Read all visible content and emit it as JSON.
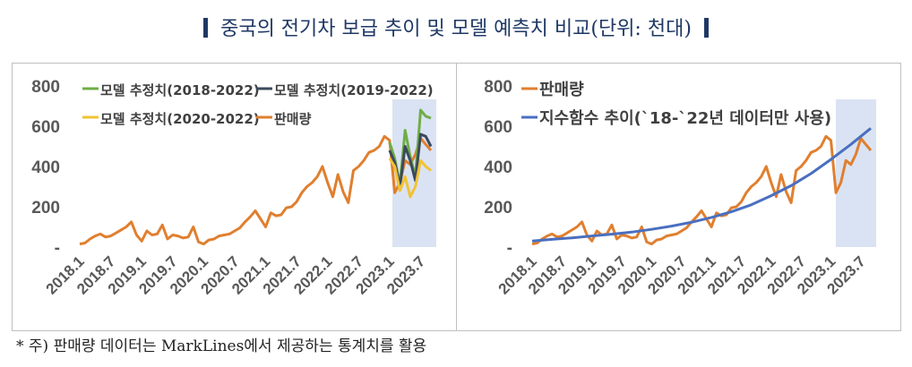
{
  "title": "중국의 전기차 보급 추이 및 모델 예측치 비교(단위: 천대)",
  "note": "* 주) 판매량 데이터는 MarkLines에서 제공하는 통계치를 활용",
  "colors": {
    "sales": "#e07f2f",
    "model_2018": "#70ad47",
    "model_2019": "#3a4a5c",
    "model_2020": "#f2c232",
    "trend": "#4a6fc0",
    "forecast_band": "#dae3f3",
    "axis_text": "#595959",
    "title": "#1f3864"
  },
  "chart_data": [
    {
      "type": "line",
      "panel": "left",
      "y_tick_labels": [
        "-",
        "200",
        "400",
        "600",
        "800"
      ],
      "ylim": [
        0,
        800
      ],
      "x_tick_labels": [
        "2018.1",
        "2018.7",
        "2019.1",
        "2019.7",
        "2020.1",
        "2020.7",
        "2021.1",
        "2021.7",
        "2022.1",
        "2022.7",
        "2023.1",
        "2023.7"
      ],
      "shaded_region": [
        "2023.1",
        "2023.9"
      ],
      "legend_placement": "top",
      "series": [
        {
          "name": "판매량",
          "x": [
            0,
            1,
            2,
            3,
            4,
            5,
            6,
            7,
            8,
            9,
            10,
            11,
            12,
            13,
            14,
            15,
            16,
            17,
            18,
            19,
            20,
            21,
            22,
            23,
            24,
            25,
            26,
            27,
            28,
            29,
            30,
            31,
            32,
            33,
            34,
            35,
            36,
            37,
            38,
            39,
            40,
            41,
            42,
            43,
            44,
            45,
            46,
            47,
            48,
            49,
            50,
            51,
            52,
            53,
            54,
            55,
            56,
            57,
            58,
            59,
            60,
            61,
            62,
            63,
            64,
            65,
            66,
            67,
            68
          ],
          "values": [
            15,
            20,
            40,
            55,
            65,
            50,
            55,
            70,
            85,
            100,
            125,
            60,
            30,
            80,
            60,
            65,
            110,
            40,
            60,
            55,
            45,
            50,
            100,
            25,
            15,
            35,
            40,
            55,
            60,
            65,
            80,
            95,
            125,
            150,
            180,
            140,
            100,
            170,
            155,
            160,
            195,
            200,
            225,
            270,
            300,
            320,
            350,
            400,
            320,
            250,
            360,
            275,
            220,
            380,
            400,
            430,
            470,
            480,
            500,
            550,
            530,
            270,
            320,
            430,
            410,
            460,
            540,
            510,
            480
          ]
        },
        {
          "name": "모델 추정치(2018-2022)",
          "x": [
            60,
            61,
            62,
            63,
            64,
            65,
            66,
            67,
            68
          ],
          "values": [
            520,
            440,
            310,
            580,
            450,
            350,
            680,
            650,
            640
          ]
        },
        {
          "name": "모델 추정치(2019-2022)",
          "x": [
            60,
            61,
            62,
            63,
            64,
            65,
            66,
            67,
            68
          ],
          "values": [
            480,
            420,
            300,
            500,
            430,
            330,
            560,
            550,
            500
          ]
        },
        {
          "name": "모델 추정치(2020-2022)",
          "x": [
            60,
            61,
            62,
            63,
            64,
            65,
            66,
            67,
            68
          ],
          "values": [
            440,
            400,
            280,
            350,
            250,
            300,
            430,
            400,
            380
          ]
        }
      ]
    },
    {
      "type": "line",
      "panel": "right",
      "y_tick_labels": [
        "-",
        "200",
        "400",
        "600",
        "800"
      ],
      "ylim": [
        0,
        800
      ],
      "x_tick_labels": [
        "2018.1",
        "2018.7",
        "2019.1",
        "2019.7",
        "2020.1",
        "2020.7",
        "2021.1",
        "2021.7",
        "2022.1",
        "2022.7",
        "2023.1",
        "2023.7"
      ],
      "shaded_region": [
        "2023.1",
        "2023.9"
      ],
      "legend_placement": "top-left",
      "series": [
        {
          "name": "판매량",
          "x": [
            0,
            1,
            2,
            3,
            4,
            5,
            6,
            7,
            8,
            9,
            10,
            11,
            12,
            13,
            14,
            15,
            16,
            17,
            18,
            19,
            20,
            21,
            22,
            23,
            24,
            25,
            26,
            27,
            28,
            29,
            30,
            31,
            32,
            33,
            34,
            35,
            36,
            37,
            38,
            39,
            40,
            41,
            42,
            43,
            44,
            45,
            46,
            47,
            48,
            49,
            50,
            51,
            52,
            53,
            54,
            55,
            56,
            57,
            58,
            59,
            60,
            61,
            62,
            63,
            64,
            65,
            66,
            67,
            68
          ],
          "values": [
            15,
            20,
            40,
            55,
            65,
            50,
            55,
            70,
            85,
            100,
            125,
            60,
            30,
            80,
            60,
            65,
            110,
            40,
            60,
            55,
            45,
            50,
            100,
            25,
            15,
            35,
            40,
            55,
            60,
            65,
            80,
            95,
            125,
            150,
            180,
            140,
            100,
            170,
            155,
            160,
            195,
            200,
            225,
            270,
            300,
            320,
            350,
            400,
            320,
            250,
            360,
            275,
            220,
            380,
            400,
            430,
            470,
            480,
            500,
            550,
            530,
            270,
            320,
            430,
            410,
            460,
            540,
            510,
            480
          ]
        },
        {
          "name": "지수함수 추이(`18-`22년 데이터만 사용)",
          "x": [
            0,
            4,
            8,
            12,
            16,
            20,
            24,
            28,
            32,
            36,
            40,
            44,
            48,
            52,
            56,
            60,
            64,
            68
          ],
          "values": [
            30,
            38,
            46,
            55,
            64,
            74,
            88,
            104,
            123,
            147,
            175,
            210,
            255,
            305,
            365,
            435,
            510,
            590
          ]
        }
      ]
    }
  ]
}
